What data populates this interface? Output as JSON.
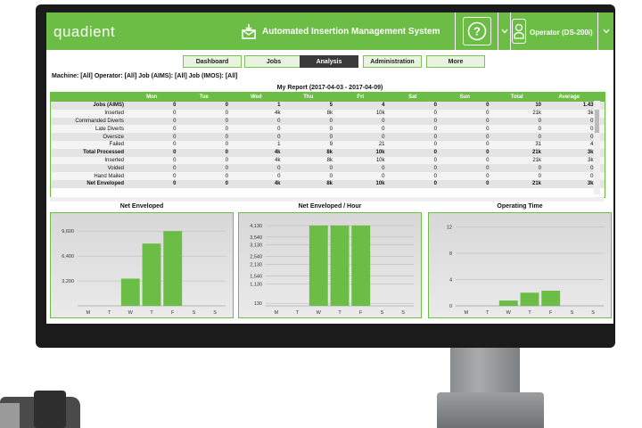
{
  "app": {
    "logo": "quadient",
    "title": "Automated Insertion Management System",
    "help_icon": "question-circle-icon",
    "user_icon": "operator-icon",
    "operator_label": "Operator (DS-200i)",
    "accent": "#6cbd45"
  },
  "tabs": [
    {
      "label": "Dashboard",
      "active": false
    },
    {
      "label": "Jobs",
      "active": false
    },
    {
      "label": "Analysis",
      "active": true
    },
    {
      "label": "Administration",
      "active": false
    },
    {
      "label": "More",
      "active": false
    }
  ],
  "filters": "Machine: [All]   Operator: [All]   Job (AIMS): [All]   Job (IMOS): [All]",
  "report": {
    "title": "My Report (2017-04-03 - 2017-04-09)",
    "columns": [
      "",
      "Mon",
      "Tue",
      "Wed",
      "Thu",
      "Fri",
      "Sat",
      "Sun",
      "Total",
      "Average"
    ],
    "rows": [
      {
        "cells": [
          "Jobs (AIMS)",
          "0",
          "0",
          "1",
          "5",
          "4",
          "0",
          "0",
          "10",
          "1.43"
        ],
        "bold": true
      },
      {
        "cells": [
          "Inserted",
          "0",
          "0",
          "4k",
          "8k",
          "10k",
          "0",
          "0",
          "21k",
          "3k"
        ],
        "bold": false
      },
      {
        "cells": [
          "Commanded Diverts",
          "0",
          "0",
          "0",
          "0",
          "0",
          "0",
          "0",
          "0",
          "0"
        ],
        "bold": false
      },
      {
        "cells": [
          "Late Diverts",
          "0",
          "0",
          "0",
          "0",
          "0",
          "0",
          "0",
          "0",
          "0"
        ],
        "bold": false
      },
      {
        "cells": [
          "Oversize",
          "0",
          "0",
          "0",
          "0",
          "0",
          "0",
          "0",
          "0",
          "0"
        ],
        "bold": false
      },
      {
        "cells": [
          "Failed",
          "0",
          "0",
          "1",
          "9",
          "21",
          "0",
          "0",
          "31",
          "4"
        ],
        "bold": false
      },
      {
        "cells": [
          "Total Processed",
          "0",
          "0",
          "4k",
          "8k",
          "10k",
          "0",
          "0",
          "21k",
          "3k"
        ],
        "bold": true
      },
      {
        "cells": [
          "Inserted",
          "0",
          "0",
          "4k",
          "8k",
          "10k",
          "0",
          "0",
          "21k",
          "3k"
        ],
        "bold": false
      },
      {
        "cells": [
          "Voided",
          "0",
          "0",
          "0",
          "0",
          "0",
          "0",
          "0",
          "0",
          "0"
        ],
        "bold": false
      },
      {
        "cells": [
          "Hand Mailed",
          "0",
          "0",
          "0",
          "0",
          "0",
          "0",
          "0",
          "0",
          "0"
        ],
        "bold": false
      },
      {
        "cells": [
          "Net Enveloped",
          "0",
          "0",
          "4k",
          "8k",
          "10k",
          "0",
          "0",
          "21k",
          "3k"
        ],
        "bold": true
      }
    ]
  },
  "chart_data": [
    {
      "type": "bar",
      "title": "Net Enveloped",
      "categories": [
        "M",
        "T",
        "W",
        "T",
        "F",
        "S",
        "S"
      ],
      "values": [
        0,
        0,
        3500,
        8000,
        9600,
        0,
        0
      ],
      "yticks": [
        3200,
        6400,
        9600
      ],
      "ylim": [
        0,
        11000
      ],
      "bar_color": "#6cbd45"
    },
    {
      "type": "bar",
      "title": "Net Enveloped / Hour",
      "categories": [
        "M",
        "T",
        "W",
        "T",
        "F",
        "S",
        "S"
      ],
      "values": [
        0,
        0,
        4130,
        4130,
        4130,
        0,
        0
      ],
      "yticks": [
        130,
        1130,
        1540,
        2130,
        2540,
        3130,
        3540,
        4130
      ],
      "ylim": [
        0,
        4400
      ],
      "bar_color": "#6cbd45"
    },
    {
      "type": "bar",
      "title": "Operating Time",
      "categories": [
        "M",
        "T",
        "W",
        "T",
        "F",
        "S",
        "S"
      ],
      "values": [
        0,
        0,
        0.8,
        2,
        2.3,
        0,
        0
      ],
      "yticks": [
        0,
        4,
        8,
        12
      ],
      "ylim": [
        0,
        13
      ],
      "bar_color": "#6cbd45"
    }
  ]
}
